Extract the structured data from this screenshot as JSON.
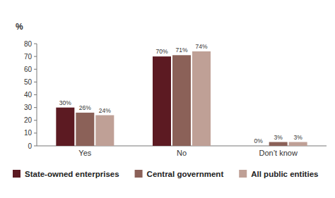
{
  "chart_data": {
    "type": "bar",
    "ylabel": "%",
    "categories": [
      "Yes",
      "No",
      "Don’t know"
    ],
    "series": [
      {
        "name": "State-owned enterprises",
        "color": "#5c1a22",
        "values": [
          30,
          70,
          0
        ],
        "value_labels": [
          "30%",
          "70%",
          "0%"
        ]
      },
      {
        "name": "Central government",
        "color": "#8b6158",
        "values": [
          26,
          71,
          3
        ],
        "value_labels": [
          "26%",
          "71%",
          "3%"
        ]
      },
      {
        "name": "All public entities",
        "color": "#bfa096",
        "values": [
          24,
          74,
          3
        ],
        "value_labels": [
          "24%",
          "74%",
          "3%"
        ]
      }
    ],
    "ylim": [
      0,
      80
    ],
    "yticks": [
      0,
      10,
      20,
      30,
      40,
      50,
      60,
      70,
      80
    ],
    "grid": false,
    "legend": "bottom",
    "data_labels": true
  }
}
